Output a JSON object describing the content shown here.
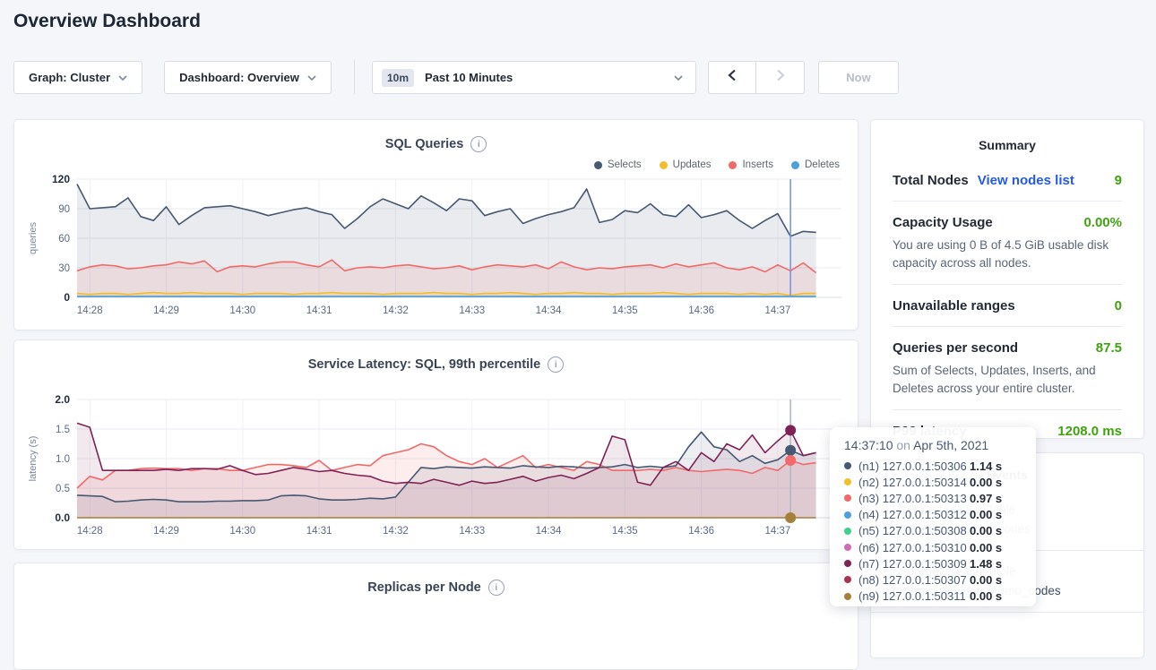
{
  "page": {
    "title": "Overview Dashboard"
  },
  "toolbar": {
    "graph_dropdown": "Graph: Cluster",
    "dashboard_dropdown": "Dashboard: Overview",
    "time_badge": "10m",
    "time_label": "Past 10 Minutes",
    "now_label": "Now"
  },
  "colors": {
    "link_blue": "#2559e8",
    "value_green": "#3fa30e",
    "sql_hover_line": "#7d97e3",
    "latency_hover_line": "#b3b8c4"
  },
  "summary": {
    "title": "Summary",
    "rows": [
      {
        "label": "Total Nodes",
        "link": "View nodes list",
        "value": "9"
      },
      {
        "label": "Capacity Usage",
        "value": "0.00%",
        "caption": "You are using 0 B of 4.5 GiB usable disk capacity across all nodes."
      },
      {
        "label": "Unavailable ranges",
        "value": "0"
      },
      {
        "label": "Queries per second",
        "value": "87.5",
        "caption": "Sum of Selects, Updates, Inserts, and Deletes across your entire cluster."
      },
      {
        "label": "P99 latency",
        "value": "1208.0 ms"
      }
    ]
  },
  "events": {
    "title": "Events",
    "items": [
      {
        "line1": "User root created table",
        "line2": "movr.public.promo_codes"
      },
      {
        "line1": "User root created table",
        "line2": "movr.public.user_promo_codes"
      }
    ]
  },
  "tooltip": {
    "time": "14:37:10",
    "on": "on",
    "date": "Apr 5th, 2021",
    "rows": [
      {
        "color": "#475872",
        "label": "(n1) 127.0.0.1:50306",
        "value": "1.14 s"
      },
      {
        "color": "#f2be2d",
        "label": "(n2) 127.0.0.1:50314",
        "value": "0.00 s"
      },
      {
        "color": "#f16969",
        "label": "(n3) 127.0.0.1:50313",
        "value": "0.97 s"
      },
      {
        "color": "#4da0dd",
        "label": "(n4) 127.0.0.1:50312",
        "value": "0.00 s"
      },
      {
        "color": "#3fd08e",
        "label": "(n5) 127.0.0.1:50308",
        "value": "0.00 s"
      },
      {
        "color": "#cf6cb7",
        "label": "(n6) 127.0.0.1:50310",
        "value": "0.00 s"
      },
      {
        "color": "#7f2357",
        "label": "(n7) 127.0.0.1:50309",
        "value": "1.48 s"
      },
      {
        "color": "#a83252",
        "label": "(n8) 127.0.0.1:50307",
        "value": "0.00 s"
      },
      {
        "color": "#a67f3a",
        "label": "(n9) 127.0.0.1:50311",
        "value": "0.00 s"
      }
    ]
  },
  "chart_data": [
    {
      "type": "line",
      "title": "SQL Queries",
      "ylabel": "queries",
      "ylim": [
        0,
        120
      ],
      "yticks": [
        "0",
        "30",
        "60",
        "90",
        "120"
      ],
      "x_tick_labels": [
        "14:28",
        "14:29",
        "14:30",
        "14:31",
        "14:32",
        "14:33",
        "14:34",
        "14:35",
        "14:36",
        "14:37"
      ],
      "legend_position": "top-right",
      "grid": true,
      "legend": [
        {
          "label": "Selects",
          "color": "#475872"
        },
        {
          "label": "Updates",
          "color": "#f2be2d"
        },
        {
          "label": "Inserts",
          "color": "#f16969"
        },
        {
          "label": "Deletes",
          "color": "#4da0dd"
        }
      ],
      "series": [
        {
          "name": "Selects",
          "color": "#475872",
          "fill": 0.12,
          "values": [
            115,
            90,
            91,
            92,
            101,
            82,
            78,
            92,
            74,
            83,
            91,
            92,
            93,
            90,
            87,
            83,
            86,
            89,
            91,
            87,
            84,
            70,
            80,
            92,
            100,
            95,
            90,
            103,
            96,
            88,
            100,
            98,
            83,
            87,
            90,
            75,
            80,
            84,
            87,
            91,
            110,
            76,
            79,
            88,
            86,
            95,
            84,
            82,
            94,
            81,
            84,
            88,
            78,
            70,
            78,
            85,
            62,
            67,
            66
          ]
        },
        {
          "name": "Inserts",
          "color": "#f16969",
          "fill": 0.12,
          "values": [
            27,
            31,
            33,
            32,
            29,
            30,
            32,
            33,
            36,
            34,
            37,
            26,
            31,
            32,
            31,
            34,
            36,
            36,
            33,
            31,
            38,
            27,
            30,
            31,
            30,
            32,
            33,
            31,
            29,
            30,
            32,
            28,
            31,
            33,
            32,
            31,
            33,
            29,
            36,
            31,
            28,
            30,
            29,
            31,
            32,
            33,
            30,
            34,
            31,
            33,
            35,
            30,
            28,
            31,
            26,
            33,
            27,
            35,
            25
          ]
        },
        {
          "name": "Updates",
          "color": "#f2be2d",
          "fill": 0.18,
          "values": [
            4,
            3,
            4,
            4,
            3,
            4,
            5,
            4,
            4,
            5,
            4,
            4,
            4,
            3,
            4,
            4,
            4,
            3,
            4,
            4,
            5,
            4,
            4,
            4,
            3,
            4,
            4,
            4,
            5,
            4,
            4,
            3,
            4,
            4,
            5,
            4,
            3,
            4,
            4,
            5,
            4,
            4,
            3,
            4,
            4,
            4,
            5,
            4,
            3,
            4,
            4,
            4,
            3,
            4,
            3,
            4,
            2,
            4,
            4
          ]
        },
        {
          "name": "Deletes",
          "color": "#4da0dd",
          "fill": 0,
          "values": [
            1,
            1,
            1,
            1,
            1,
            1,
            1,
            1,
            1,
            1,
            1,
            1,
            1,
            1,
            1,
            1,
            1,
            1,
            1,
            1,
            1,
            1,
            1,
            1,
            1,
            1,
            1,
            1,
            1,
            1,
            1,
            1,
            1,
            1,
            1,
            1,
            1,
            1,
            1,
            1,
            1,
            1,
            1,
            1,
            1,
            1,
            1,
            1,
            1,
            1,
            1,
            1,
            1,
            1,
            1,
            1,
            1,
            1,
            1
          ]
        }
      ],
      "hover": {
        "index": 56,
        "line_color": "#7d97e3",
        "dots": []
      }
    },
    {
      "type": "line",
      "title": "Service Latency: SQL, 99th percentile",
      "ylabel": "latency (s)",
      "ylim": [
        0,
        2.0
      ],
      "yticks": [
        "0.0",
        "0.5",
        "1.0",
        "1.5",
        "2.0"
      ],
      "x_tick_labels": [
        "14:28",
        "14:29",
        "14:30",
        "14:31",
        "14:32",
        "14:33",
        "14:34",
        "14:35",
        "14:36",
        "14:37"
      ],
      "grid": true,
      "legend": [],
      "series": [
        {
          "name": "(n3) 127.0.0.1:50313",
          "color": "#f16969",
          "fill": 0.12,
          "values": [
            0.5,
            0.7,
            0.64,
            0.8,
            0.8,
            0.83,
            0.84,
            0.83,
            0.83,
            0.8,
            0.83,
            0.83,
            0.8,
            0.8,
            0.85,
            0.9,
            0.9,
            0.88,
            0.85,
            0.97,
            0.8,
            0.85,
            0.9,
            0.88,
            1.05,
            1.1,
            1.15,
            1.25,
            1.2,
            1.05,
            0.95,
            0.9,
            1.0,
            0.85,
            0.95,
            1.05,
            0.85,
            0.9,
            0.85,
            0.8,
            0.95,
            0.9,
            0.8,
            0.8,
            0.8,
            0.82,
            0.8,
            0.85,
            0.8,
            0.78,
            0.8,
            0.82,
            0.8,
            0.75,
            0.85,
            0.8,
            0.97,
            0.9,
            0.93
          ]
        },
        {
          "name": "(n1) 127.0.0.1:50306",
          "color": "#475872",
          "fill": 0.1,
          "values": [
            0.38,
            0.37,
            0.36,
            0.27,
            0.28,
            0.3,
            0.31,
            0.3,
            0.27,
            0.27,
            0.27,
            0.28,
            0.28,
            0.29,
            0.29,
            0.3,
            0.37,
            0.38,
            0.37,
            0.32,
            0.3,
            0.3,
            0.31,
            0.33,
            0.32,
            0.35,
            0.6,
            0.85,
            0.83,
            0.86,
            0.85,
            0.84,
            0.86,
            0.85,
            0.84,
            0.88,
            0.86,
            0.85,
            0.87,
            0.86,
            0.84,
            0.85,
            0.86,
            0.9,
            0.85,
            0.87,
            0.85,
            0.88,
            1.2,
            1.45,
            1.2,
            1.15,
            0.95,
            1.05,
            0.92,
            0.98,
            1.14,
            1.05,
            1.1
          ]
        },
        {
          "name": "(n7) 127.0.0.1:50309",
          "color": "#7f2357",
          "fill": 0.1,
          "values": [
            1.6,
            1.53,
            0.8,
            0.8,
            0.8,
            0.8,
            0.8,
            0.82,
            0.8,
            0.83,
            0.83,
            0.82,
            0.88,
            0.8,
            0.73,
            0.75,
            0.8,
            0.85,
            0.82,
            0.78,
            0.8,
            0.75,
            0.72,
            0.7,
            0.62,
            0.58,
            0.6,
            0.58,
            0.65,
            0.6,
            0.55,
            0.62,
            0.58,
            0.6,
            0.65,
            0.7,
            0.62,
            0.68,
            0.72,
            0.66,
            0.75,
            0.85,
            1.38,
            1.32,
            0.6,
            0.55,
            0.85,
            0.95,
            0.8,
            1.1,
            0.95,
            1.25,
            1.15,
            1.4,
            1.1,
            1.3,
            1.48,
            1.05,
            1.1
          ]
        },
        {
          "name": "(n9) 127.0.0.1:50311",
          "color": "#a67f3a",
          "fill": 0,
          "values": [
            0,
            0,
            0,
            0,
            0,
            0,
            0,
            0,
            0,
            0,
            0,
            0,
            0,
            0,
            0,
            0,
            0,
            0,
            0,
            0,
            0,
            0,
            0,
            0,
            0,
            0,
            0,
            0,
            0,
            0,
            0,
            0,
            0,
            0,
            0,
            0,
            0,
            0,
            0,
            0,
            0,
            0,
            0,
            0,
            0,
            0,
            0,
            0,
            0,
            0,
            0,
            0,
            0,
            0,
            0,
            0,
            0,
            0,
            0
          ]
        }
      ],
      "hover": {
        "index": 56,
        "line_color": "#b3b8c4",
        "dots": [
          {
            "color": "#7f2357",
            "value": 1.48
          },
          {
            "color": "#475872",
            "value": 1.14
          },
          {
            "color": "#f16969",
            "value": 0.97
          },
          {
            "color": "#a67f3a",
            "value": 0.0
          }
        ]
      }
    },
    {
      "type": "line",
      "title": "Replicas per Node"
    }
  ]
}
